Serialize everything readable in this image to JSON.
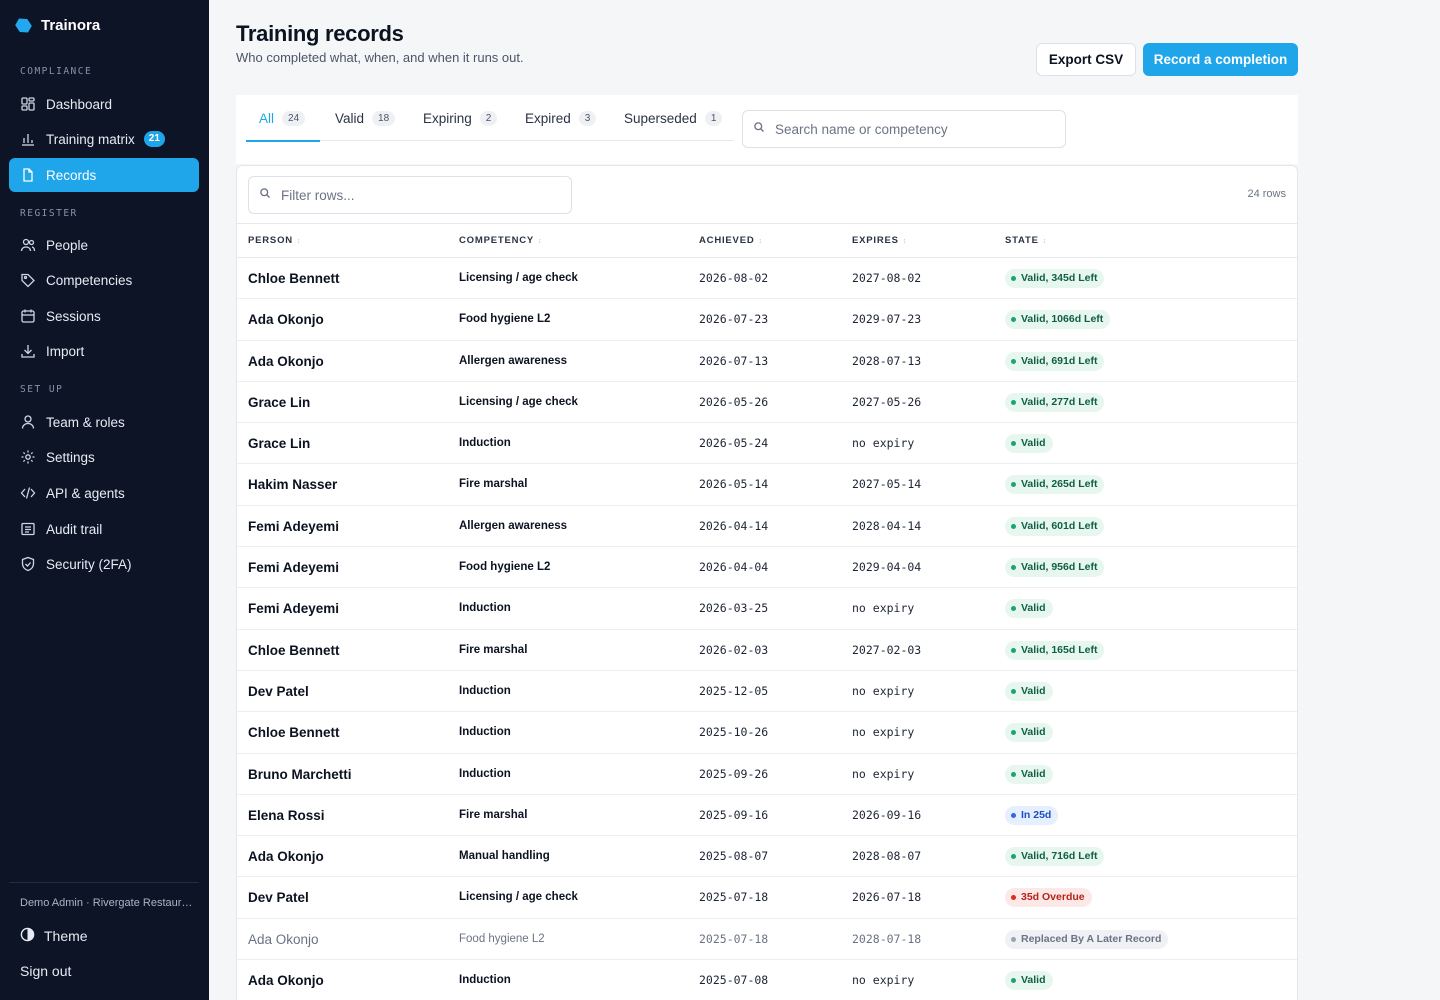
{
  "app": {
    "name": "Trainora"
  },
  "sidebar": {
    "sections": [
      {
        "label": "COMPLIANCE"
      },
      {
        "label": "REGISTER"
      },
      {
        "label": "SET UP"
      }
    ],
    "items": [
      {
        "label": "Dashboard",
        "icon": "dashboard-icon"
      },
      {
        "label": "Training matrix",
        "icon": "chart-icon",
        "badge": "21"
      },
      {
        "label": "Records",
        "icon": "document-icon",
        "active": true
      },
      {
        "label": "People",
        "icon": "people-icon"
      },
      {
        "label": "Competencies",
        "icon": "tag-icon"
      },
      {
        "label": "Sessions",
        "icon": "calendar-icon"
      },
      {
        "label": "Import",
        "icon": "download-icon"
      },
      {
        "label": "Team & roles",
        "icon": "user-icon"
      },
      {
        "label": "Settings",
        "icon": "gear-icon"
      },
      {
        "label": "API & agents",
        "icon": "code-icon"
      },
      {
        "label": "Audit trail",
        "icon": "list-icon"
      },
      {
        "label": "Security (2FA)",
        "icon": "shield-icon"
      }
    ],
    "user": "Demo Admin · Rivergate Restaurant",
    "theme_label": "Theme",
    "signout_label": "Sign out"
  },
  "header": {
    "title": "Training records",
    "subtitle": "Who completed what, when, and when it runs out.",
    "export_label": "Export CSV",
    "record_label": "Record a completion"
  },
  "tabs": [
    {
      "label": "All",
      "count": "24",
      "active": true
    },
    {
      "label": "Valid",
      "count": "18"
    },
    {
      "label": "Expiring",
      "count": "2"
    },
    {
      "label": "Expired",
      "count": "3"
    },
    {
      "label": "Superseded",
      "count": "1"
    }
  ],
  "search": {
    "placeholder": "Search name or competency"
  },
  "filter": {
    "placeholder": "Filter rows..."
  },
  "table": {
    "row_count": "24 rows",
    "columns": [
      "PERSON",
      "COMPETENCY",
      "ACHIEVED",
      "EXPIRES",
      "STATE"
    ],
    "rows": [
      {
        "person": "Chloe Bennett",
        "competency": "Licensing / age check",
        "achieved": "2026-08-02",
        "expires": "2027-08-02",
        "state": "Valid, 345d Left",
        "kind": "valid"
      },
      {
        "person": "Ada Okonjo",
        "competency": "Food hygiene L2",
        "achieved": "2026-07-23",
        "expires": "2029-07-23",
        "state": "Valid, 1066d Left",
        "kind": "valid"
      },
      {
        "person": "Ada Okonjo",
        "competency": "Allergen awareness",
        "achieved": "2026-07-13",
        "expires": "2028-07-13",
        "state": "Valid, 691d Left",
        "kind": "valid"
      },
      {
        "person": "Grace Lin",
        "competency": "Licensing / age check",
        "achieved": "2026-05-26",
        "expires": "2027-05-26",
        "state": "Valid, 277d Left",
        "kind": "valid"
      },
      {
        "person": "Grace Lin",
        "competency": "Induction",
        "achieved": "2026-05-24",
        "expires": "no expiry",
        "state": "Valid",
        "kind": "valid"
      },
      {
        "person": "Hakim Nasser",
        "competency": "Fire marshal",
        "achieved": "2026-05-14",
        "expires": "2027-05-14",
        "state": "Valid, 265d Left",
        "kind": "valid"
      },
      {
        "person": "Femi Adeyemi",
        "competency": "Allergen awareness",
        "achieved": "2026-04-14",
        "expires": "2028-04-14",
        "state": "Valid, 601d Left",
        "kind": "valid"
      },
      {
        "person": "Femi Adeyemi",
        "competency": "Food hygiene L2",
        "achieved": "2026-04-04",
        "expires": "2029-04-04",
        "state": "Valid, 956d Left",
        "kind": "valid"
      },
      {
        "person": "Femi Adeyemi",
        "competency": "Induction",
        "achieved": "2026-03-25",
        "expires": "no expiry",
        "state": "Valid",
        "kind": "valid"
      },
      {
        "person": "Chloe Bennett",
        "competency": "Fire marshal",
        "achieved": "2026-02-03",
        "expires": "2027-02-03",
        "state": "Valid, 165d Left",
        "kind": "valid"
      },
      {
        "person": "Dev Patel",
        "competency": "Induction",
        "achieved": "2025-12-05",
        "expires": "no expiry",
        "state": "Valid",
        "kind": "valid"
      },
      {
        "person": "Chloe Bennett",
        "competency": "Induction",
        "achieved": "2025-10-26",
        "expires": "no expiry",
        "state": "Valid",
        "kind": "valid"
      },
      {
        "person": "Bruno Marchetti",
        "competency": "Induction",
        "achieved": "2025-09-26",
        "expires": "no expiry",
        "state": "Valid",
        "kind": "valid"
      },
      {
        "person": "Elena Rossi",
        "competency": "Fire marshal",
        "achieved": "2025-09-16",
        "expires": "2026-09-16",
        "state": "In 25d",
        "kind": "soon"
      },
      {
        "person": "Ada Okonjo",
        "competency": "Manual handling",
        "achieved": "2025-08-07",
        "expires": "2028-08-07",
        "state": "Valid, 716d Left",
        "kind": "valid"
      },
      {
        "person": "Dev Patel",
        "competency": "Licensing / age check",
        "achieved": "2025-07-18",
        "expires": "2026-07-18",
        "state": "35d Overdue",
        "kind": "overdue"
      },
      {
        "person": "Ada Okonjo",
        "competency": "Food hygiene L2",
        "achieved": "2025-07-18",
        "expires": "2028-07-18",
        "state": "Replaced By A Later Record",
        "kind": "superseded"
      },
      {
        "person": "Ada Okonjo",
        "competency": "Induction",
        "achieved": "2025-07-08",
        "expires": "no expiry",
        "state": "Valid",
        "kind": "valid"
      }
    ]
  },
  "colors": {
    "accent": "#1ea5ea",
    "sidebar_bg": "#0d1426",
    "valid": "#18a572",
    "overdue": "#d92d20",
    "soon": "#3466e0"
  }
}
